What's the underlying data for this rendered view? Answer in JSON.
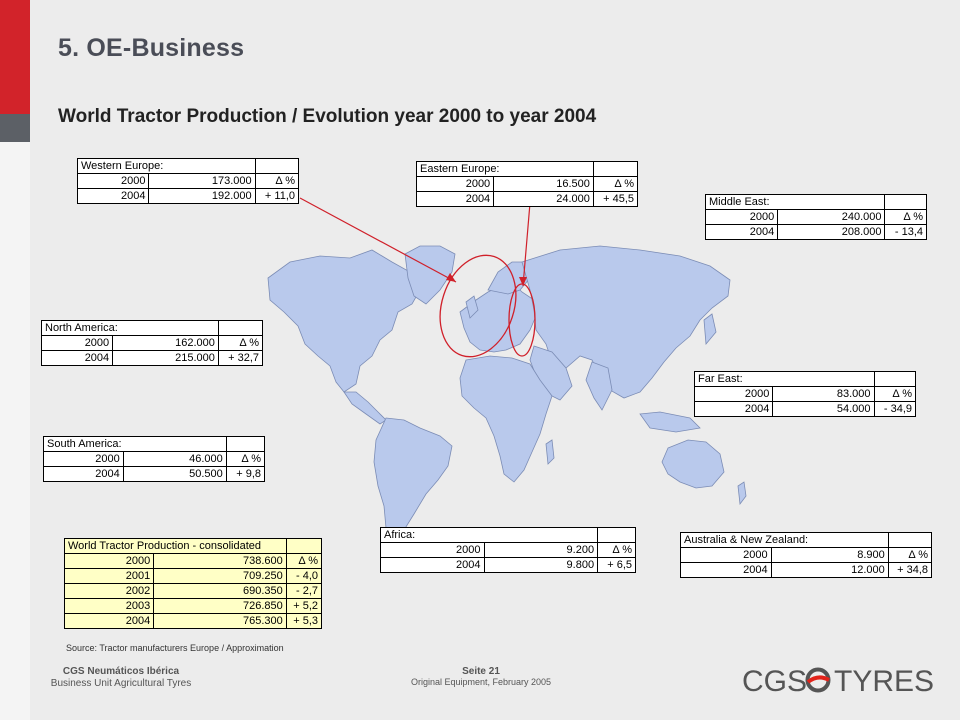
{
  "slide": {
    "section_title": "5. OE-Business",
    "subtitle": "World Tractor Production / Evolution year 2000 to year 2004",
    "source_note": "Source: Tractor manufacturers Europe / Approximation"
  },
  "regions": {
    "western_europe": {
      "name": "Western Europe:",
      "delta_header": "Δ  %",
      "rows": [
        {
          "year": "2000",
          "value": "173.000",
          "delta": ""
        },
        {
          "year": "2004",
          "value": "192.000",
          "delta": "+ 11,0"
        }
      ]
    },
    "eastern_europe": {
      "name": "Eastern Europe:",
      "delta_header": "Δ  %",
      "rows": [
        {
          "year": "2000",
          "value": "16.500",
          "delta": ""
        },
        {
          "year": "2004",
          "value": "24.000",
          "delta": "+ 45,5"
        }
      ]
    },
    "middle_east": {
      "name": "Middle East:",
      "delta_header": "Δ  %",
      "rows": [
        {
          "year": "2000",
          "value": "240.000",
          "delta": ""
        },
        {
          "year": "2004",
          "value": "208.000",
          "delta": "- 13,4"
        }
      ]
    },
    "north_america": {
      "name": "North America:",
      "delta_header": "Δ  %",
      "rows": [
        {
          "year": "2000",
          "value": "162.000",
          "delta": ""
        },
        {
          "year": "2004",
          "value": "215.000",
          "delta": "+ 32,7"
        }
      ]
    },
    "far_east": {
      "name": "Far East:",
      "delta_header": "Δ  %",
      "rows": [
        {
          "year": "2000",
          "value": "83.000",
          "delta": ""
        },
        {
          "year": "2004",
          "value": "54.000",
          "delta": "- 34,9"
        }
      ]
    },
    "south_america": {
      "name": "South America:",
      "delta_header": "Δ  %",
      "rows": [
        {
          "year": "2000",
          "value": "46.000",
          "delta": ""
        },
        {
          "year": "2004",
          "value": "50.500",
          "delta": "+ 9,8"
        }
      ]
    },
    "africa": {
      "name": "Africa:",
      "delta_header": "Δ  %",
      "rows": [
        {
          "year": "2000",
          "value": "9.200",
          "delta": ""
        },
        {
          "year": "2004",
          "value": "9.800",
          "delta": "+ 6,5"
        }
      ]
    },
    "australia": {
      "name": "Australia & New Zealand:",
      "delta_header": "Δ  %",
      "rows": [
        {
          "year": "2000",
          "value": "8.900",
          "delta": ""
        },
        {
          "year": "2004",
          "value": "12.000",
          "delta": "+ 34,8"
        }
      ]
    }
  },
  "consolidated": {
    "title": "World Tractor Production - consolidated",
    "delta_header": "Δ  %",
    "rows": [
      {
        "year": "2000",
        "value": "738.600",
        "delta": ""
      },
      {
        "year": "2001",
        "value": "709.250",
        "delta": "- 4,0"
      },
      {
        "year": "2002",
        "value": "690.350",
        "delta": "- 2,7"
      },
      {
        "year": "2003",
        "value": "726.850",
        "delta": "+ 5,2"
      },
      {
        "year": "2004",
        "value": "765.300",
        "delta": "+ 5,3"
      }
    ]
  },
  "footer": {
    "company": "CGS Neumáticos Ibérica",
    "unit": "Business Unit Agricultural Tyres",
    "page": "Seite 21",
    "doc": "Original Equipment, February 2005"
  },
  "logo": {
    "text_left": "CGS",
    "text_right": "TYRES",
    "accent_color": "#e2231a",
    "text_color": "#555555"
  },
  "colors": {
    "brand_red": "#d2232a",
    "map_fill": "#b9c9ec",
    "map_stroke": "#7b8cb5",
    "highlight_red": "#d0202a"
  }
}
